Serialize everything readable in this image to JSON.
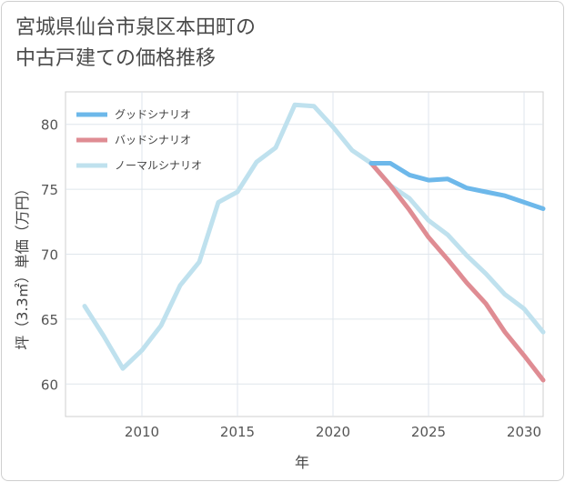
{
  "title": {
    "line1": "宮城県仙台市泉区本田町の",
    "line2": "中古戸建ての価格推移"
  },
  "chart_data": {
    "type": "line",
    "xlabel": "年",
    "ylabel": "坪（3.3㎡）単価（万円）",
    "xlim": [
      2006,
      2031
    ],
    "ylim": [
      57.5,
      82.5
    ],
    "xticks": [
      2010,
      2015,
      2020,
      2025,
      2030
    ],
    "yticks": [
      60,
      65,
      70,
      75,
      80
    ],
    "grid": true,
    "legend_position": "top-left",
    "series": [
      {
        "name": "グッドシナリオ",
        "color": "#6db8ea",
        "x": [
          2022,
          2023,
          2024,
          2025,
          2026,
          2027,
          2028,
          2029,
          2030,
          2031
        ],
        "y": [
          77.0,
          77.0,
          76.1,
          75.7,
          75.8,
          75.1,
          74.8,
          74.5,
          74.0,
          73.5
        ]
      },
      {
        "name": "バッドシナリオ",
        "color": "#df8c93",
        "x": [
          2022,
          2023,
          2024,
          2025,
          2026,
          2027,
          2028,
          2029,
          2030,
          2031
        ],
        "y": [
          77.0,
          75.3,
          73.4,
          71.3,
          69.6,
          67.8,
          66.2,
          64.0,
          62.2,
          60.3
        ]
      },
      {
        "name": "ノーマルシナリオ",
        "color": "#bfe1ee",
        "x": [
          2007,
          2008,
          2009,
          2010,
          2011,
          2012,
          2013,
          2014,
          2015,
          2016,
          2017,
          2018,
          2019,
          2020,
          2021,
          2022,
          2023,
          2024,
          2025,
          2026,
          2027,
          2028,
          2029,
          2030,
          2031
        ],
        "y": [
          66.0,
          63.7,
          61.2,
          62.6,
          64.5,
          67.6,
          69.4,
          74.0,
          74.8,
          77.1,
          78.2,
          81.5,
          81.4,
          79.8,
          78.0,
          77.0,
          75.3,
          74.3,
          72.6,
          71.5,
          69.9,
          68.5,
          66.9,
          65.8,
          64.0
        ]
      }
    ]
  }
}
